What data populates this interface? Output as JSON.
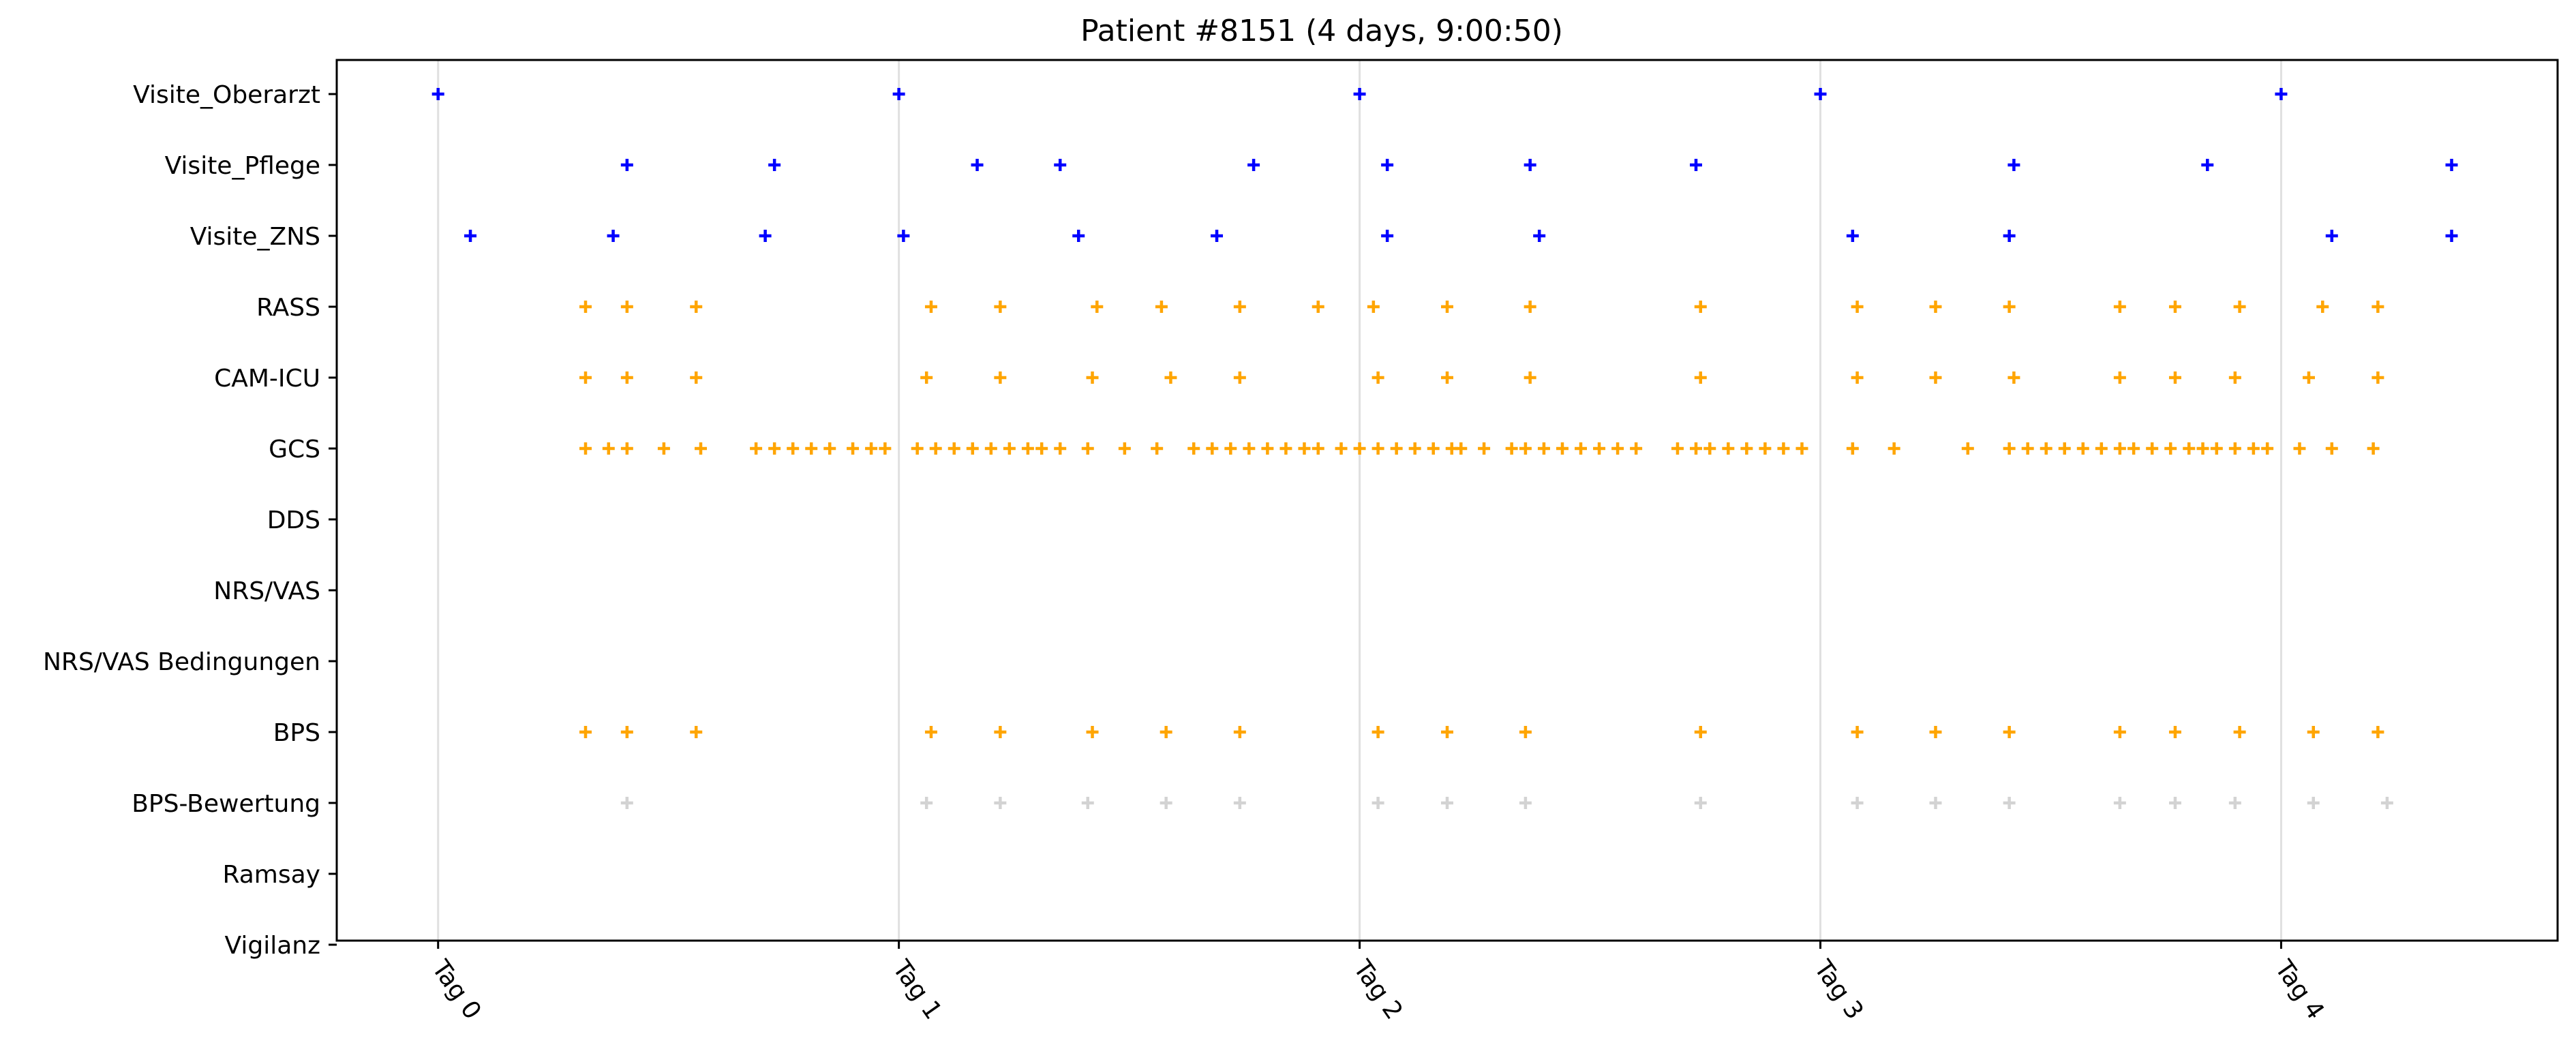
{
  "chart_data": {
    "type": "scatter",
    "title": "Patient #8151 (4 days, 9:00:50)",
    "xlabel": "",
    "ylabel": "",
    "x_unit": "days",
    "xlim": [
      -0.22,
      4.6
    ],
    "x_ticks": [
      0,
      1,
      2,
      3,
      4
    ],
    "x_tick_labels": [
      "Tag 0",
      "Tag 1",
      "Tag 2",
      "Tag 3",
      "Tag 4"
    ],
    "x_tick_rotation": -55,
    "categories": [
      "Visite_Oberarzt",
      "Visite_Pflege",
      "Visite_ZNS",
      "RASS",
      "CAM-ICU",
      "GCS",
      "DDS",
      "NRS/VAS",
      "NRS/VAS Bedingungen",
      "BPS",
      "BPS-Bewertung",
      "Ramsay",
      "Vigilanz"
    ],
    "vertical_gridlines": true,
    "marker": "plus",
    "series": [
      {
        "category": "Visite_Oberarzt",
        "color": "#0000ff",
        "x": [
          0.0,
          1.0,
          2.0,
          3.0,
          4.0
        ]
      },
      {
        "category": "Visite_Pflege",
        "color": "#0000ff",
        "x": [
          0.41,
          0.73,
          1.17,
          1.35,
          1.77,
          2.06,
          2.37,
          2.73,
          3.42,
          3.84,
          4.37
        ]
      },
      {
        "category": "Visite_ZNS",
        "color": "#0000ff",
        "x": [
          0.07,
          0.38,
          0.71,
          1.01,
          1.39,
          1.69,
          2.06,
          2.39,
          3.07,
          3.41,
          4.11,
          4.37
        ]
      },
      {
        "category": "RASS",
        "color": "#ffa500",
        "x": [
          0.32,
          0.41,
          0.56,
          1.07,
          1.22,
          1.43,
          1.57,
          1.74,
          1.91,
          2.03,
          2.19,
          2.37,
          2.74,
          3.08,
          3.25,
          3.41,
          3.65,
          3.77,
          3.91,
          4.09,
          4.21
        ]
      },
      {
        "category": "CAM-ICU",
        "color": "#ffa500",
        "x": [
          0.32,
          0.41,
          0.56,
          1.06,
          1.22,
          1.42,
          1.59,
          1.74,
          2.04,
          2.19,
          2.37,
          2.74,
          3.08,
          3.25,
          3.42,
          3.65,
          3.77,
          3.9,
          4.06,
          4.21
        ]
      },
      {
        "category": "GCS",
        "color": "#ffa500",
        "x": [
          0.32,
          0.37,
          0.41,
          0.49,
          0.57,
          0.69,
          0.73,
          0.77,
          0.81,
          0.85,
          0.9,
          0.94,
          0.97,
          1.04,
          1.08,
          1.12,
          1.16,
          1.2,
          1.24,
          1.28,
          1.31,
          1.35,
          1.41,
          1.49,
          1.56,
          1.64,
          1.68,
          1.72,
          1.76,
          1.8,
          1.84,
          1.88,
          1.91,
          1.96,
          2.0,
          2.04,
          2.08,
          2.12,
          2.16,
          2.2,
          2.22,
          2.27,
          2.33,
          2.36,
          2.4,
          2.44,
          2.48,
          2.52,
          2.56,
          2.6,
          2.69,
          2.73,
          2.76,
          2.8,
          2.84,
          2.88,
          2.92,
          2.96,
          3.07,
          3.16,
          3.32,
          3.41,
          3.45,
          3.49,
          3.53,
          3.57,
          3.61,
          3.65,
          3.68,
          3.72,
          3.76,
          3.8,
          3.83,
          3.86,
          3.9,
          3.94,
          3.97,
          4.04,
          4.11,
          4.2
        ]
      },
      {
        "category": "BPS",
        "color": "#ffa500",
        "x": [
          0.32,
          0.41,
          0.56,
          1.07,
          1.22,
          1.42,
          1.58,
          1.74,
          2.04,
          2.19,
          2.36,
          2.74,
          3.08,
          3.25,
          3.41,
          3.65,
          3.77,
          3.91,
          4.07,
          4.21
        ]
      },
      {
        "category": "BPS-Bewertung",
        "color": "#d3d3d3",
        "x": [
          0.41,
          1.06,
          1.22,
          1.41,
          1.58,
          1.74,
          2.04,
          2.19,
          2.36,
          2.74,
          3.08,
          3.25,
          3.41,
          3.65,
          3.77,
          3.9,
          4.07,
          4.23
        ]
      }
    ]
  }
}
